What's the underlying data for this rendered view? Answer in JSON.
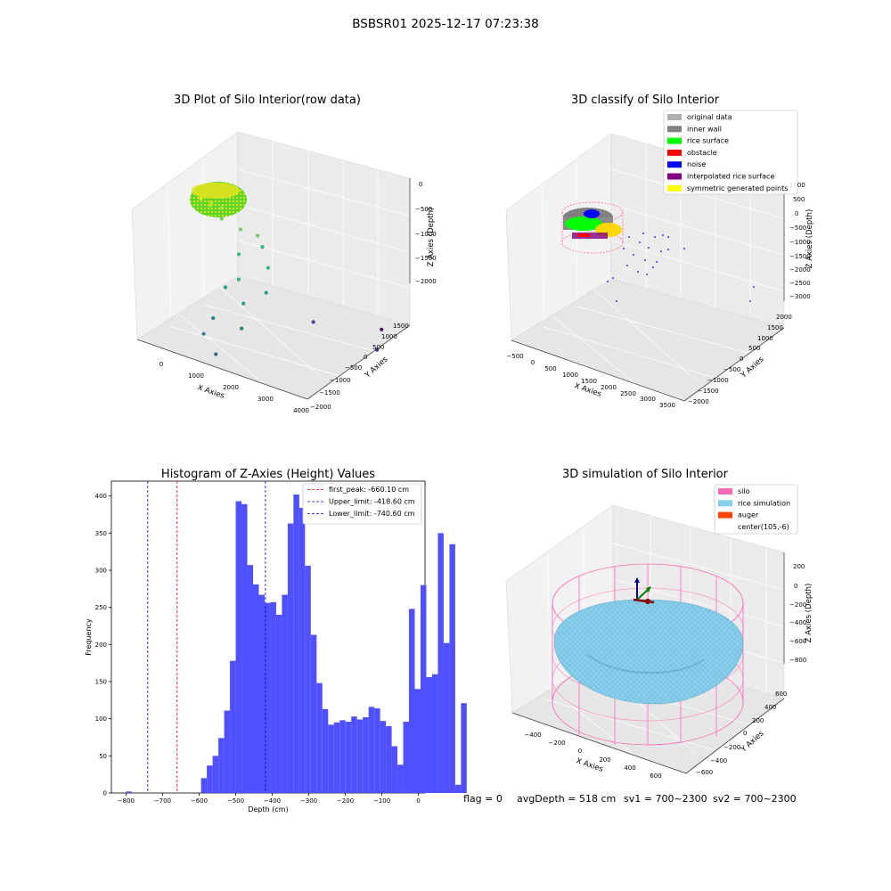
{
  "suptitle": "BSBSR01 2025-12-17 07:23:38",
  "footer": {
    "flag": "flag = 0",
    "avg_depth": "avgDepth = 518 cm",
    "sv1": "sv1 = 700~2300",
    "sv2": "sv2 = 700~2300"
  },
  "colors": {
    "raw_scatter": [
      "#fde725",
      "#b5de2b",
      "#6ece58",
      "#35b779",
      "#1f9e89",
      "#26828e",
      "#31688e",
      "#3e4989",
      "#482878",
      "#440154"
    ],
    "hist_bar": "#5050ff",
    "first_peak_line": "#ff0000",
    "limit_lines": "#0000cc",
    "silo_wire": "#ff69b4",
    "rice_surface": "#87ceeb",
    "auger": "#ff4500"
  },
  "chart_data": [
    {
      "type": "scatter3d",
      "title": "3D Plot of Silo Interior(row data)",
      "xlabel": "X Axies",
      "ylabel": "Y Axies",
      "zlabel": "Z Axies (Depth)",
      "xticks": [
        "0",
        "1000",
        "2000",
        "3000",
        "4000"
      ],
      "yticks": [
        "1500",
        "1000",
        "500",
        "0",
        "−500",
        "−1000",
        "−1500",
        "−2000"
      ],
      "zticks": [
        "0",
        "−500",
        "−1000",
        "−1500",
        "−2000"
      ],
      "points": [
        {
          "x": 150,
          "y": 0,
          "z": -250,
          "c": 0
        },
        {
          "x": 350,
          "y": 100,
          "z": -300,
          "c": 0
        },
        {
          "x": 500,
          "y": -100,
          "z": -200,
          "c": 1
        },
        {
          "x": 250,
          "y": 200,
          "z": -400,
          "c": 1
        },
        {
          "x": 600,
          "y": 150,
          "z": -350,
          "c": 1
        },
        {
          "x": 700,
          "y": 0,
          "z": -450,
          "c": 2
        },
        {
          "x": 900,
          "y": 400,
          "z": -700,
          "c": 2
        },
        {
          "x": 1200,
          "y": 600,
          "z": -800,
          "c": 2
        },
        {
          "x": 1000,
          "y": 200,
          "z": -1000,
          "c": 3
        },
        {
          "x": 1400,
          "y": 500,
          "z": -900,
          "c": 3
        },
        {
          "x": 1300,
          "y": -200,
          "z": -1200,
          "c": 3
        },
        {
          "x": 1700,
          "y": 300,
          "z": -1100,
          "c": 3
        },
        {
          "x": 1100,
          "y": -400,
          "z": -1300,
          "c": 4
        },
        {
          "x": 1500,
          "y": -300,
          "z": -1500,
          "c": 4
        },
        {
          "x": 1800,
          "y": 100,
          "z": -1400,
          "c": 4
        },
        {
          "x": 1000,
          "y": -700,
          "z": -1700,
          "c": 5
        },
        {
          "x": 1600,
          "y": -500,
          "z": -1800,
          "c": 5
        },
        {
          "x": 900,
          "y": -900,
          "z": -1900,
          "c": 5
        },
        {
          "x": 1300,
          "y": -1000,
          "z": -2100,
          "c": 6
        },
        {
          "x": 3200,
          "y": -100,
          "z": -1500,
          "c": 7
        },
        {
          "x": 3900,
          "y": 1200,
          "z": -2200,
          "c": 8
        },
        {
          "x": 3800,
          "y": 1500,
          "z": -2000,
          "c": 9
        }
      ]
    },
    {
      "type": "scatter3d",
      "title": "3D classify of Silo Interior",
      "xlabel": "X Axies",
      "ylabel": "Y Axies",
      "zlabel": "Z Axies (Depth)",
      "xticks": [
        "−500",
        "0",
        "500",
        "1000",
        "1500",
        "2000",
        "2500",
        "3000",
        "3500"
      ],
      "yticks": [
        "2000",
        "1500",
        "1000",
        "500",
        "0",
        "−500",
        "−1000",
        "−1500",
        "−2000"
      ],
      "zticks": [
        "1000",
        "500",
        "0",
        "−500",
        "−1000",
        "−1500",
        "−2000",
        "−2500",
        "−3000"
      ],
      "legend": [
        {
          "label": "original data",
          "color": "#b0b0b0"
        },
        {
          "label": "inner wall",
          "color": "#808080"
        },
        {
          "label": "rice surface",
          "color": "#00ff00"
        },
        {
          "label": "obstacle",
          "color": "#ff0000"
        },
        {
          "label": "noise",
          "color": "#0000ff"
        },
        {
          "label": "interpolated rice surface",
          "color": "#800080"
        },
        {
          "label": "symmetric generated points",
          "color": "#ffff00"
        }
      ],
      "legend_position": "upper right"
    },
    {
      "type": "bar",
      "title": "Histogram of Z-Axies (Height) Values",
      "xlabel": "Depth (cm)",
      "ylabel": "Frequency",
      "xlim": [
        -840,
        18
      ],
      "ylim": [
        0,
        420
      ],
      "xticks": [
        -800,
        -700,
        -600,
        -500,
        -400,
        -300,
        -200,
        -100,
        0
      ],
      "yticks": [
        0,
        50,
        100,
        150,
        200,
        250,
        300,
        350,
        400
      ],
      "bin_width": 15.8,
      "bin_start": -800,
      "values": [
        2,
        0,
        0,
        0,
        0,
        0,
        0,
        0,
        0,
        0,
        0,
        0,
        0,
        20,
        37,
        50,
        74,
        111,
        178,
        393,
        389,
        307,
        281,
        267,
        256,
        257,
        240,
        267,
        363,
        402,
        384,
        306,
        213,
        148,
        113,
        92,
        95,
        98,
        96,
        103,
        99,
        102,
        116,
        114,
        97,
        90,
        63,
        38,
        96,
        248,
        140,
        280,
        156,
        160,
        350,
        202,
        335,
        11,
        121
      ],
      "lines": [
        {
          "x": -660.1,
          "style": "red",
          "label": "first_peak: -660.10 cm"
        },
        {
          "x": -418.6,
          "style": "blue",
          "label": "Upper_limit: -418.60 cm"
        },
        {
          "x": -740.6,
          "style": "blue",
          "label": "Lower_limit: -740.60 cm"
        }
      ],
      "legend_position": "upper right"
    },
    {
      "type": "surface3d",
      "title": "3D simulation of Silo Interior",
      "xlabel": "X Axies",
      "ylabel": "Y Axies",
      "zlabel": "Z Axies (Depth)",
      "xticks": [
        "−400",
        "−200",
        "0",
        "200",
        "400",
        "600"
      ],
      "yticks": [
        "600",
        "400",
        "200",
        "0",
        "−200",
        "−400",
        "−600"
      ],
      "zticks": [
        "200",
        "0",
        "−200",
        "−400",
        "−600",
        "−800"
      ],
      "legend": [
        {
          "label": "silo",
          "color": "#ff69b4"
        },
        {
          "label": "rice simulation",
          "color": "#87ceeb"
        },
        {
          "label": "auger",
          "color": "#ff4500"
        },
        {
          "label": "center(105,-6)",
          "color": ""
        }
      ],
      "legend_position": "upper right"
    }
  ]
}
